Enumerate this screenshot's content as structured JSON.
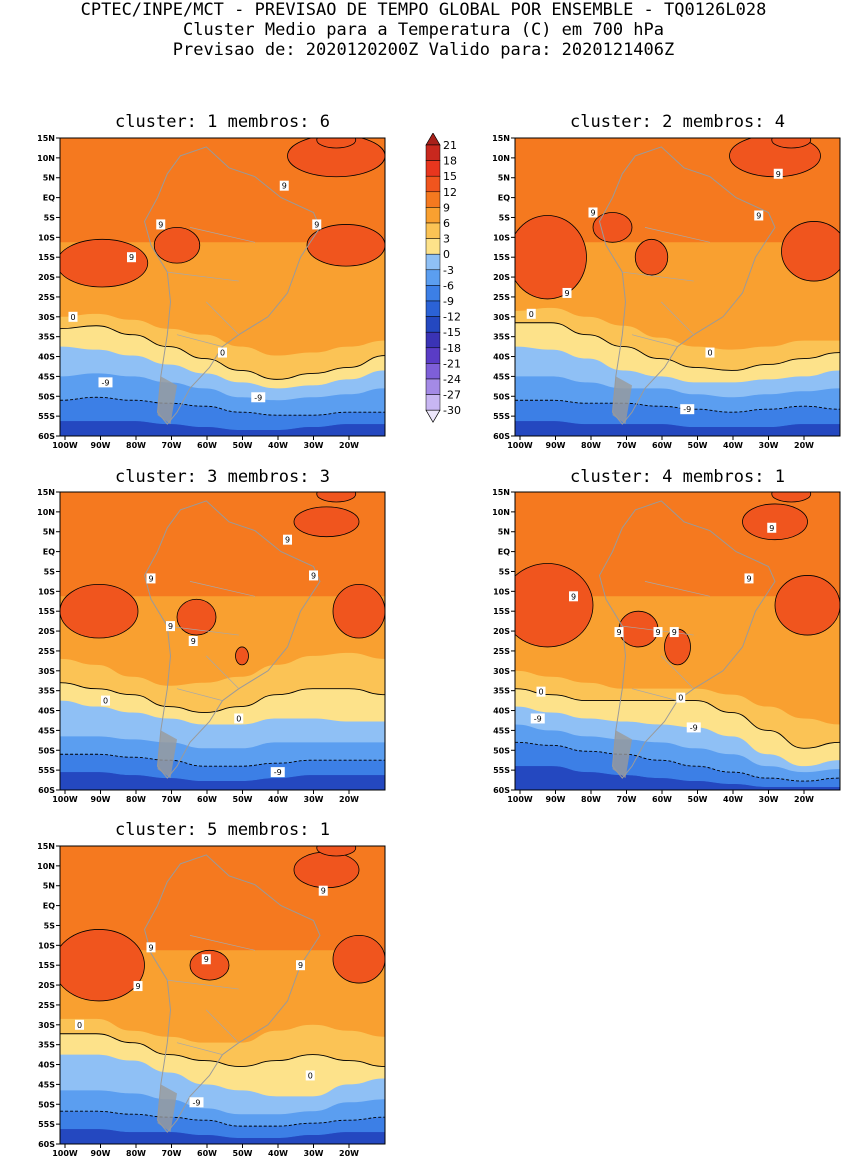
{
  "header": {
    "line1": "CPTEC/INPE/MCT - PREVISAO DE TEMPO GLOBAL POR ENSEMBLE - TQ0126L028",
    "line2": "Cluster Medio para a Temperatura (C) em 700 hPa",
    "line3": "Previsao de: 2020120200Z   Valido para: 2020121406Z"
  },
  "panels": [
    {
      "title": "cluster: 1   membros: 6"
    },
    {
      "title": "cluster: 2   membros: 4"
    },
    {
      "title": "cluster: 3   membros: 3"
    },
    {
      "title": "cluster: 4   membros: 1"
    },
    {
      "title": "cluster: 5   membros: 1"
    }
  ],
  "lat_ticks": [
    "15N",
    "10N",
    "5N",
    "EQ",
    "5S",
    "10S",
    "15S",
    "20S",
    "25S",
    "30S",
    "35S",
    "40S",
    "45S",
    "50S",
    "55S",
    "60S"
  ],
  "lon_ticks": [
    "100W",
    "90W",
    "80W",
    "70W",
    "60W",
    "50W",
    "40W",
    "30W",
    "20W"
  ],
  "colorbar": {
    "labels": [
      "21",
      "18",
      "15",
      "12",
      "9",
      "6",
      "3",
      "0",
      "-3",
      "-6",
      "-9",
      "-12",
      "-15",
      "-18",
      "-21",
      "-24",
      "-27",
      "-30"
    ],
    "colors": [
      "#a8201a",
      "#c8281e",
      "#e8361e",
      "#f0551e",
      "#f5791f",
      "#f9a030",
      "#fbc355",
      "#fde28a",
      "#8fc0f5",
      "#5b9ef0",
      "#3c7fe6",
      "#2b62d6",
      "#2448c0",
      "#3a33b5",
      "#5a3cc6",
      "#7e5fd8",
      "#a48ae6",
      "#c8b6f2",
      "#ece6fb"
    ]
  },
  "contour_labels": {
    "warm": "9",
    "zero": "0",
    "cold": "-9"
  }
}
